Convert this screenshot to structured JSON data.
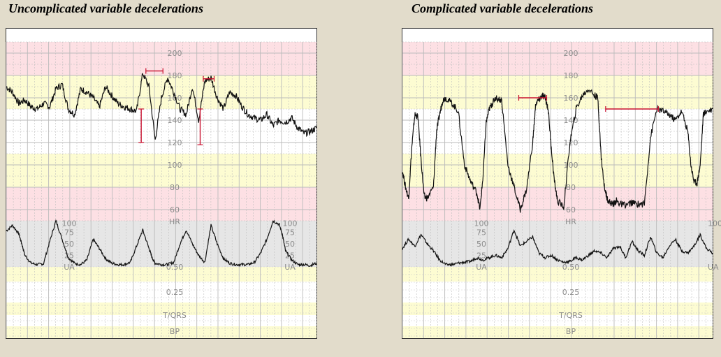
{
  "chart_data": [
    {
      "type": "line",
      "title": "Uncomplicated variable decelerations",
      "hr_scale": [
        "200",
        "180",
        "160",
        "140",
        "120",
        "100",
        "80",
        "60",
        "HR"
      ],
      "ua_scale": [
        "100",
        "75",
        "50",
        "25",
        "UA"
      ],
      "aux_scale": [
        "0.50",
        "0.25",
        "T/QRS",
        "BP"
      ],
      "hr_ylim": [
        50,
        210
      ],
      "ua_ylim": [
        0,
        100
      ],
      "grid": true,
      "hr_series": {
        "x": [
          0,
          2,
          4,
          6,
          8,
          10,
          12,
          14,
          16,
          18,
          20,
          22,
          24,
          26,
          28,
          30,
          32,
          34,
          36,
          38,
          40,
          42,
          44,
          46,
          48,
          50,
          52,
          54,
          56,
          58,
          60,
          62,
          64,
          66,
          68,
          70,
          72,
          74,
          76,
          78,
          80,
          82,
          84,
          86,
          88,
          90,
          92,
          94,
          96,
          98,
          100
        ],
        "y": [
          170,
          165,
          155,
          158,
          152,
          150,
          155,
          152,
          168,
          172,
          150,
          145,
          168,
          165,
          160,
          152,
          170,
          162,
          155,
          152,
          150,
          148,
          182,
          170,
          122,
          160,
          178,
          165,
          150,
          145,
          170,
          140,
          175,
          178,
          160,
          150,
          165,
          162,
          152,
          145,
          142,
          140,
          145,
          135,
          140,
          138,
          142,
          133,
          128,
          130,
          133
        ]
      },
      "ua_series": {
        "x": [
          0,
          2,
          4,
          5,
          6,
          8,
          10,
          12,
          14,
          16,
          18,
          20,
          22,
          24,
          26,
          28,
          30,
          32,
          34,
          36,
          38,
          40,
          42,
          44,
          46,
          47,
          48,
          50,
          52,
          54,
          56,
          58,
          60,
          62,
          64,
          66,
          68,
          70,
          72,
          74,
          76,
          78,
          80,
          82,
          84,
          86,
          88,
          89,
          90,
          92,
          94,
          96,
          98,
          100
        ],
        "y": [
          78,
          90,
          72,
          50,
          25,
          8,
          5,
          7,
          55,
          100,
          60,
          20,
          8,
          5,
          15,
          60,
          40,
          18,
          8,
          5,
          5,
          10,
          45,
          80,
          40,
          20,
          8,
          5,
          5,
          10,
          50,
          80,
          50,
          25,
          10,
          90,
          50,
          18,
          8,
          5,
          5,
          5,
          10,
          30,
          60,
          100,
          92,
          70,
          35,
          15,
          5,
          5,
          3,
          8
        ]
      },
      "markers": [
        {
          "type": "horizontal",
          "x1": 45,
          "x2": 50.5,
          "y": 184
        },
        {
          "type": "horizontal",
          "x1": 63.5,
          "x2": 67,
          "y": 177
        },
        {
          "type": "vertical",
          "x": 43.5,
          "y1": 150,
          "y2": 120
        },
        {
          "type": "vertical",
          "x": 62.5,
          "y1": 150,
          "y2": 118
        }
      ]
    },
    {
      "type": "line",
      "title": "Complicated variable decelerations",
      "hr_scale": [
        "200",
        "180",
        "160",
        "140",
        "120",
        "100",
        "80",
        "60",
        "HR"
      ],
      "ua_scale": [
        "100",
        "75",
        "50",
        "25",
        "UA",
        "100",
        "UA"
      ],
      "aux_scale": [
        "0.50",
        "0.25",
        "T/QRS",
        "BP"
      ],
      "hr_ylim": [
        50,
        210
      ],
      "ua_ylim": [
        0,
        100
      ],
      "grid": true,
      "hr_series": {
        "x": [
          0,
          1,
          2,
          3,
          4,
          5,
          6,
          7,
          8,
          10,
          11,
          12,
          13,
          14,
          16,
          18,
          20,
          22,
          24,
          25,
          26,
          27,
          28,
          29,
          30,
          32,
          34,
          36,
          38,
          40,
          42,
          43,
          44,
          45,
          46,
          47,
          48,
          49,
          50,
          52,
          54,
          56,
          58,
          60,
          62,
          63,
          64,
          65,
          66,
          67,
          68,
          69,
          70,
          72,
          74,
          76,
          78,
          80,
          82,
          84,
          86,
          88,
          90,
          92,
          93,
          94,
          95,
          96,
          97,
          98,
          100
        ],
        "y": [
          95,
          80,
          70,
          115,
          145,
          143,
          105,
          72,
          70,
          80,
          130,
          145,
          158,
          160,
          155,
          148,
          100,
          85,
          75,
          60,
          90,
          138,
          150,
          155,
          160,
          158,
          100,
          80,
          60,
          78,
          120,
          155,
          158,
          162,
          160,
          150,
          115,
          85,
          68,
          62,
          120,
          150,
          162,
          168,
          162,
          160,
          110,
          82,
          70,
          66,
          65,
          68,
          65,
          64,
          66,
          65,
          65,
          125,
          150,
          148,
          145,
          140,
          148,
          130,
          100,
          85,
          84,
          100,
          145,
          148,
          150
        ]
      },
      "ua_series": {
        "x": [
          0,
          2,
          4,
          6,
          8,
          10,
          12,
          14,
          16,
          18,
          20,
          22,
          24,
          26,
          28,
          30,
          32,
          34,
          36,
          38,
          40,
          42,
          44,
          46,
          48,
          50,
          52,
          54,
          56,
          58,
          60,
          62,
          64,
          66,
          68,
          70,
          72,
          74,
          76,
          78,
          80,
          82,
          84,
          86,
          88,
          90,
          92,
          94,
          96,
          98,
          100
        ],
        "y": [
          40,
          60,
          45,
          70,
          50,
          35,
          15,
          5,
          5,
          8,
          10,
          12,
          20,
          15,
          20,
          25,
          20,
          40,
          80,
          45,
          55,
          65,
          30,
          20,
          25,
          15,
          10,
          12,
          20,
          15,
          25,
          35,
          30,
          20,
          40,
          45,
          20,
          55,
          35,
          25,
          65,
          30,
          20,
          45,
          60,
          35,
          30,
          45,
          70,
          40,
          30
        ]
      },
      "markers": [
        {
          "type": "horizontal",
          "x1": 37.5,
          "x2": 46.5,
          "y": 160
        },
        {
          "type": "horizontal",
          "x1": 65.5,
          "x2": 82.5,
          "y": 150
        }
      ]
    }
  ]
}
